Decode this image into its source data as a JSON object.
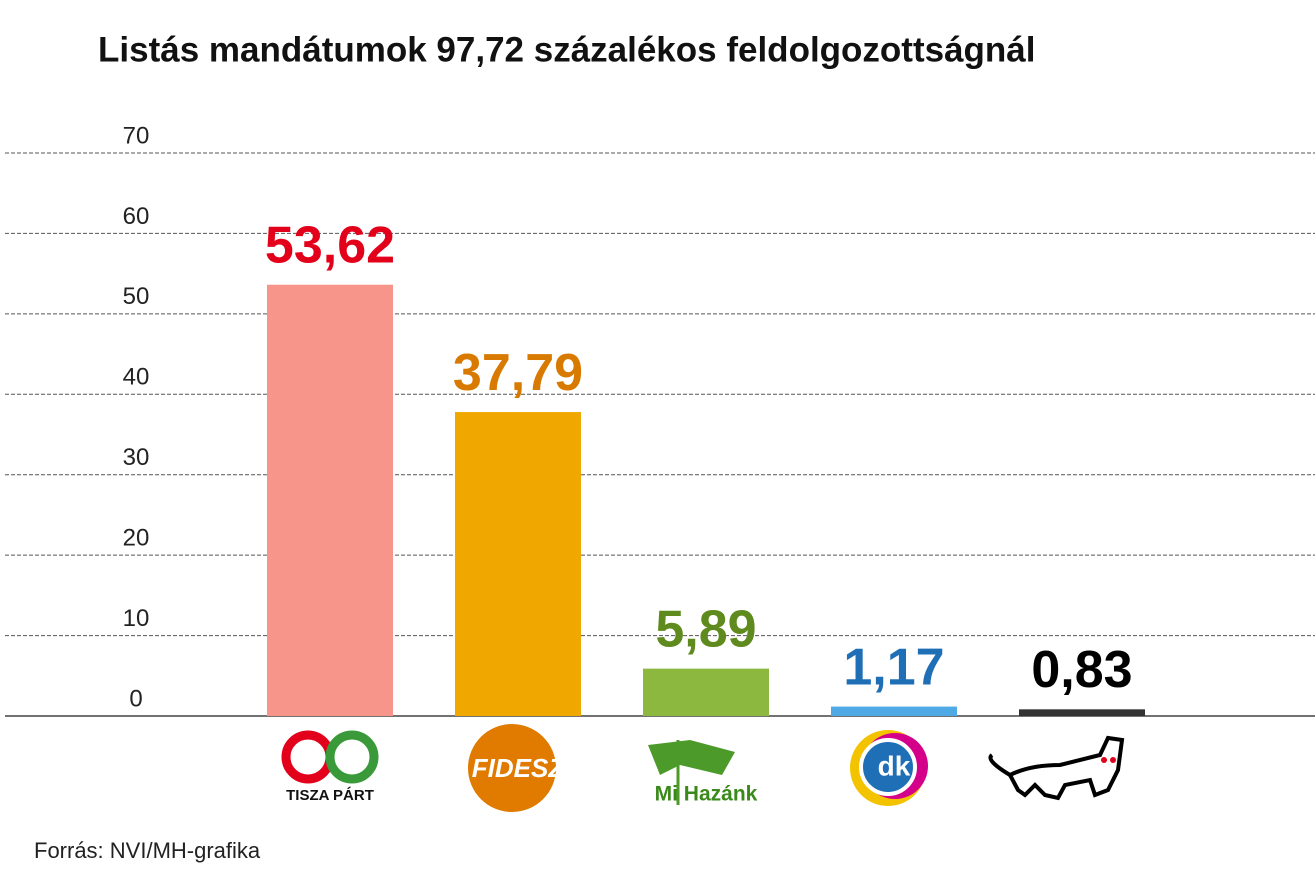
{
  "chart_data": {
    "type": "bar",
    "title": "Listás mandátumok 97,72 százalékos feldolgozottságnál",
    "categories": [
      "TISZA PÁRT",
      "FIDESZ",
      "Mi Hazánk",
      "dk",
      null
    ],
    "values": [
      53.62,
      37.79,
      5.89,
      1.17,
      0.83
    ],
    "value_labels": [
      "53,62",
      "37,79",
      "5,89",
      "1,17",
      "0,83"
    ],
    "colors": [
      "#f7958a",
      "#f0a800",
      "#8cb83f",
      "#4ea9e4",
      "#333333"
    ],
    "label_colors": [
      "#e2001a",
      "#d97a00",
      "#5f8a1e",
      "#1f6fb7",
      "#000000"
    ],
    "ylim": [
      0,
      70
    ],
    "yticks": [
      0,
      10,
      20,
      30,
      40,
      50,
      60,
      70
    ],
    "grid": true,
    "source": "Forrás: NVI/MH-grafika"
  }
}
